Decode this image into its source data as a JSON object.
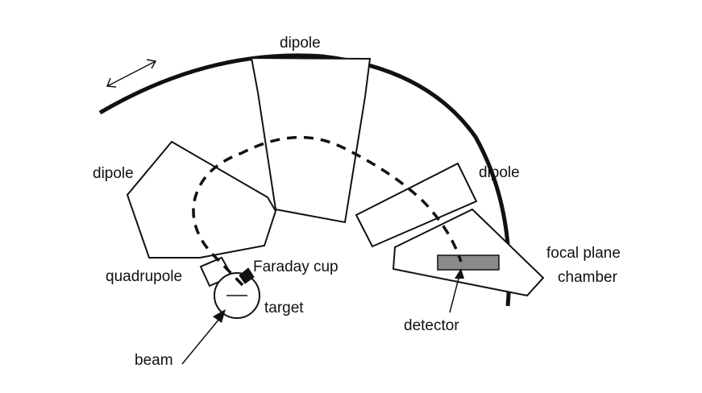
{
  "labels": {
    "dipole_top": "dipole",
    "dipole_left": "dipole",
    "dipole_right": "dipole",
    "quadrupole": "quadrupole",
    "faraday_cup": "Faraday cup",
    "target": "target",
    "beam": "beam",
    "detector": "detector",
    "focal_plane_line1": "focal plane",
    "focal_plane_line2": "chamber"
  },
  "icons": {
    "rotation": "double-headed-arrow-icon"
  },
  "colors": {
    "line": "#111111",
    "detector_fill": "#8a8a8a",
    "background": "#ffffff"
  }
}
